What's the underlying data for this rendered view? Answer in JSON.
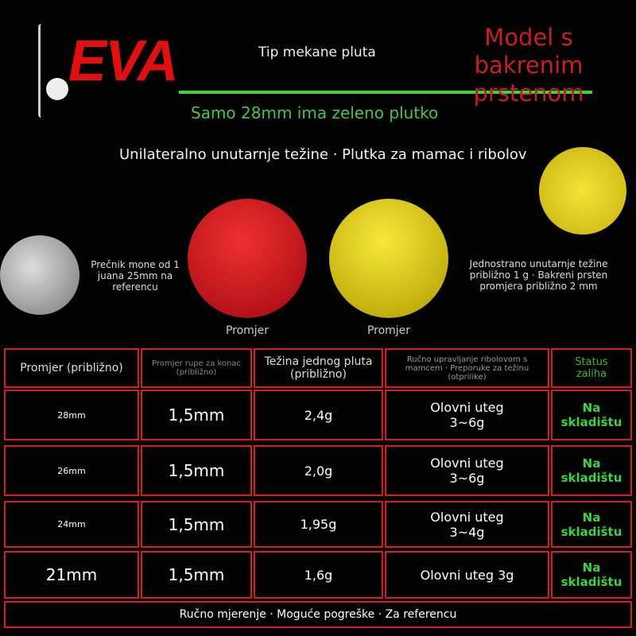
{
  "logo": "EVA",
  "header": {
    "type_title": "Tip mekane pluta",
    "green_note": "Samo 28mm ima zeleno plutko",
    "model_lines": [
      "Model s",
      "bakrenim",
      "prstenom"
    ]
  },
  "subtitle": "Unilateralno unutarnje težine · Plutka za mamac i ribolov",
  "coin_note": "Prečnik mone od 1 juana 25mm na referencu",
  "detail_note": "Jednostrano unutarnje težine približno 1 g · Bakreni prsten promjera približno 2 mm",
  "ball_labels": [
    "Promjer",
    "Promjer"
  ],
  "table": {
    "header": [
      "Promjer (približno)",
      "Promjer rupe za konac (približno)",
      "Težina jednog pluta (približno)",
      "Ručno upravljanje ribolovom s mamcem · Preporuke za težinu (otprilike)",
      "Status zaliha"
    ],
    "rows": [
      [
        "28mm",
        "1,5mm",
        "2,4g",
        "Olovni uteg 3~6g",
        "Na skladištu"
      ],
      [
        "26mm",
        "1,5mm",
        "2,0g",
        "Olovni uteg 3~6g",
        "Na skladištu"
      ],
      [
        "24mm",
        "1,5mm",
        "1,95g",
        "Olovni uteg 3~4g",
        "Na skladištu"
      ],
      [
        "21mm",
        "1,5mm",
        "1,6g",
        "Olovni uteg 3g",
        "Na skladištu"
      ]
    ]
  },
  "footer": "Ručno mjerenje · Moguće pogreške · Za referencu"
}
